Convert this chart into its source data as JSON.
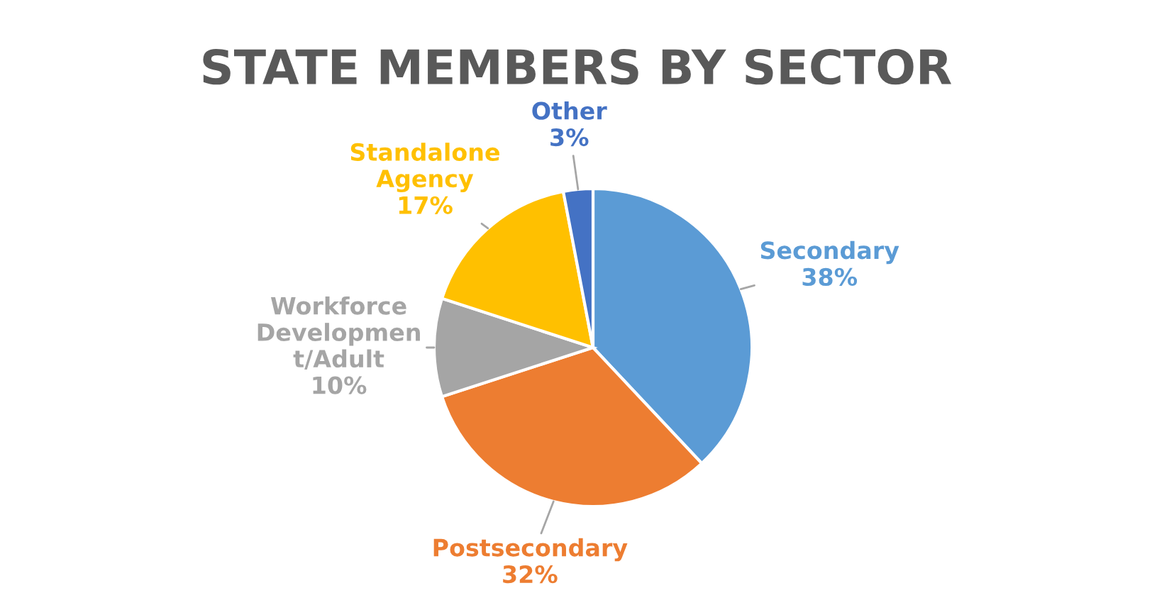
{
  "chart_data": {
    "type": "pie",
    "title": "STATE MEMBERS BY SECTOR",
    "categories": [
      "Secondary",
      "Postsecondary",
      "Workforce Development/Adult",
      "Standalone Agency",
      "Other"
    ],
    "values": [
      38,
      32,
      10,
      17,
      3
    ],
    "colors": [
      "#5b9bd5",
      "#ed7d31",
      "#a5a5a5",
      "#ffc000",
      "#4472c4"
    ],
    "value_labels": [
      "38%",
      "32%",
      "10%",
      "17%",
      "3%"
    ]
  }
}
